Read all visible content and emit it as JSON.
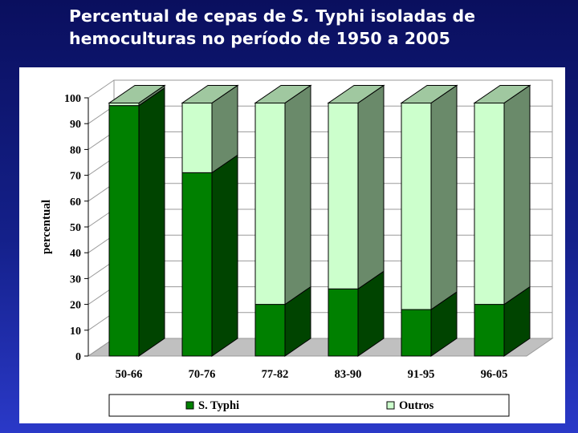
{
  "slide": {
    "title_line1": "Percentual de cepas de ",
    "title_italic": "S.",
    "title_line1_rest": " Typhi isoladas de",
    "title_line2": "hemoculturas no período de 1950 a 2005"
  },
  "colors": {
    "background": "#14208a",
    "s_typhi": "#008000",
    "outros": "#ccffcc"
  },
  "chart_data": {
    "type": "bar",
    "stacked": true,
    "three_d": true,
    "categories": [
      "50-66",
      "70-76",
      "77-82",
      "83-90",
      "91-95",
      "96-05"
    ],
    "series": [
      {
        "name": "S. Typhi",
        "values": [
          97,
          71,
          20,
          26,
          18,
          20
        ]
      },
      {
        "name": "Outros",
        "values": [
          1,
          27,
          78,
          72,
          80,
          78
        ]
      }
    ],
    "ylabel": "percentual",
    "ylim": [
      0,
      100
    ],
    "yticks": [
      0,
      10,
      20,
      30,
      40,
      50,
      60,
      70,
      80,
      90,
      100
    ],
    "grid": true,
    "legend_position": "bottom"
  }
}
